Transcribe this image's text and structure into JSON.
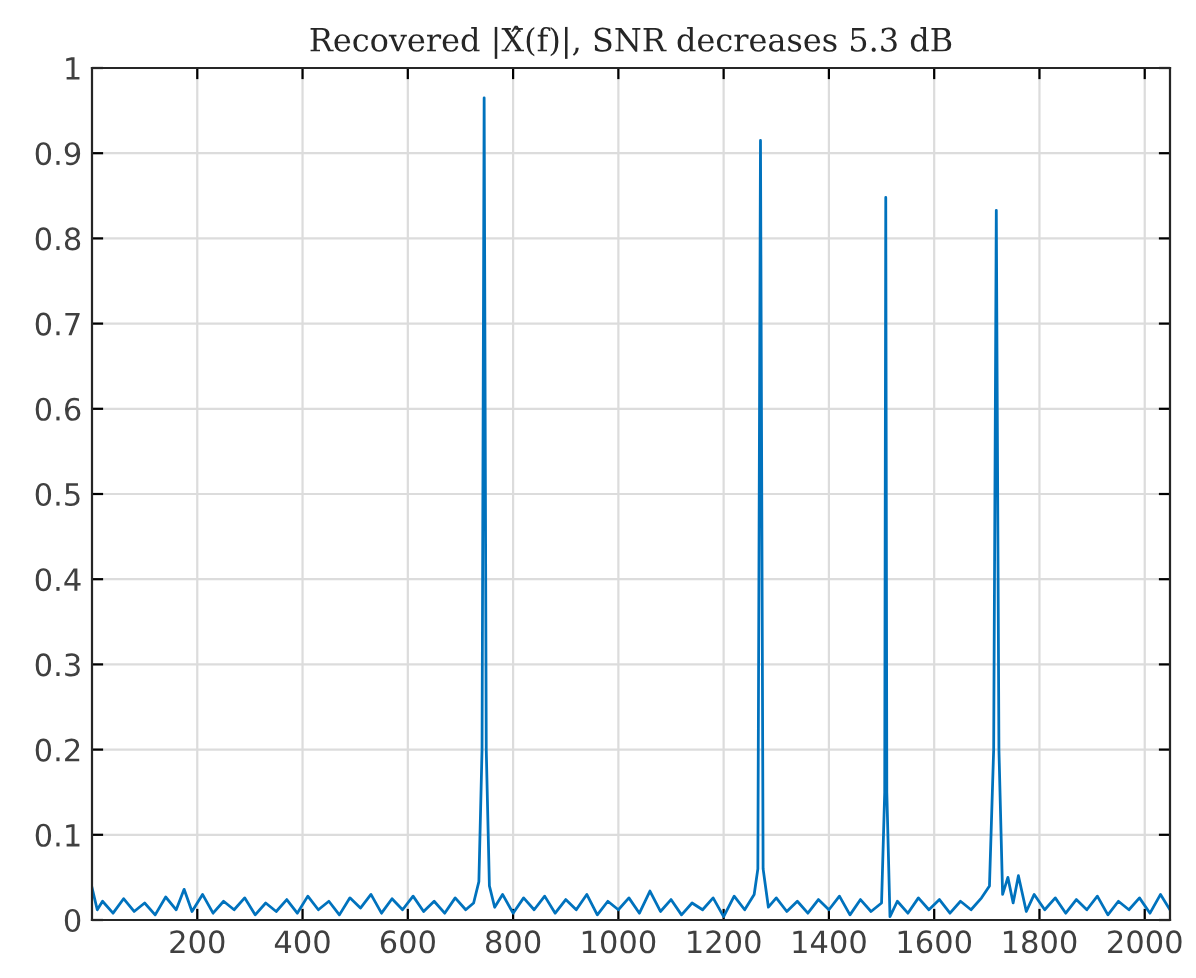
{
  "chart_data": {
    "type": "line",
    "title": "Recovered |X̂(f)|, SNR decreases 5.3 dB",
    "series": [
      {
        "color": "#0072bd",
        "x": [
          0,
          10,
          20,
          40,
          60,
          80,
          100,
          120,
          140,
          160,
          175,
          190,
          210,
          230,
          250,
          270,
          290,
          310,
          330,
          350,
          370,
          390,
          410,
          430,
          450,
          470,
          490,
          510,
          530,
          550,
          570,
          590,
          610,
          630,
          650,
          670,
          690,
          710,
          725,
          735,
          741,
          745,
          749,
          755,
          765,
          780,
          800,
          820,
          840,
          860,
          880,
          900,
          920,
          940,
          960,
          980,
          1000,
          1020,
          1040,
          1060,
          1080,
          1100,
          1120,
          1140,
          1160,
          1180,
          1200,
          1220,
          1240,
          1258,
          1265,
          1270,
          1275,
          1285,
          1300,
          1320,
          1340,
          1360,
          1380,
          1400,
          1420,
          1440,
          1460,
          1480,
          1500,
          1506,
          1508,
          1510,
          1516,
          1530,
          1550,
          1570,
          1590,
          1610,
          1630,
          1650,
          1670,
          1690,
          1705,
          1713,
          1718,
          1723,
          1730,
          1740,
          1750,
          1760,
          1775,
          1790,
          1810,
          1830,
          1850,
          1870,
          1890,
          1910,
          1930,
          1950,
          1970,
          1990,
          2010,
          2030,
          2048
        ],
        "values": [
          0.038,
          0.012,
          0.022,
          0.008,
          0.025,
          0.01,
          0.02,
          0.006,
          0.027,
          0.012,
          0.036,
          0.01,
          0.03,
          0.008,
          0.022,
          0.012,
          0.026,
          0.006,
          0.02,
          0.01,
          0.024,
          0.008,
          0.028,
          0.012,
          0.022,
          0.006,
          0.026,
          0.014,
          0.03,
          0.008,
          0.025,
          0.012,
          0.028,
          0.01,
          0.022,
          0.008,
          0.026,
          0.012,
          0.02,
          0.045,
          0.2,
          0.965,
          0.2,
          0.04,
          0.015,
          0.03,
          0.008,
          0.026,
          0.012,
          0.028,
          0.008,
          0.024,
          0.012,
          0.03,
          0.006,
          0.022,
          0.012,
          0.026,
          0.008,
          0.034,
          0.01,
          0.024,
          0.006,
          0.02,
          0.012,
          0.026,
          0.004,
          0.028,
          0.012,
          0.03,
          0.06,
          0.915,
          0.06,
          0.015,
          0.026,
          0.01,
          0.022,
          0.008,
          0.024,
          0.012,
          0.028,
          0.006,
          0.024,
          0.01,
          0.02,
          0.15,
          0.848,
          0.15,
          0.004,
          0.022,
          0.008,
          0.026,
          0.012,
          0.024,
          0.008,
          0.022,
          0.012,
          0.026,
          0.04,
          0.2,
          0.833,
          0.2,
          0.03,
          0.05,
          0.02,
          0.052,
          0.01,
          0.03,
          0.012,
          0.026,
          0.008,
          0.024,
          0.012,
          0.028,
          0.006,
          0.022,
          0.012,
          0.026,
          0.008,
          0.03,
          0.012
        ]
      }
    ],
    "xlim": [
      0,
      2048
    ],
    "xticks": [
      200,
      400,
      600,
      800,
      1000,
      1200,
      1400,
      1600,
      1800,
      2000
    ],
    "ylim": [
      0,
      1
    ],
    "yticks": [
      0,
      0.1,
      0.2,
      0.3,
      0.4,
      0.5,
      0.6,
      0.7,
      0.8,
      0.9,
      1
    ],
    "grid": true,
    "marker": "none",
    "line_style": "solid"
  }
}
